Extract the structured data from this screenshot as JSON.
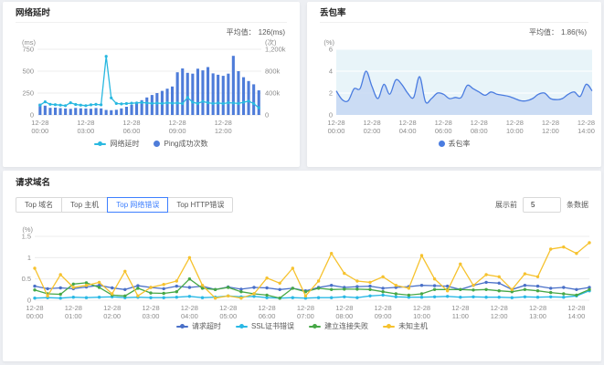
{
  "panels": {
    "latency": {
      "title": "网络延时",
      "avg_label": "平均值：",
      "avg_value": "126(ms)"
    },
    "loss": {
      "title": "丢包率",
      "avg_label": "平均值：",
      "avg_value": "1.86(%)"
    },
    "domains": {
      "title": "请求域名",
      "tabs": [
        "Top 域名",
        "Top 主机",
        "Top 网络错误",
        "Top HTTP错误"
      ],
      "active_tab": 2,
      "topn_prefix": "展示前",
      "topn_value": "5",
      "topn_suffix": "条数据"
    }
  },
  "colors": {
    "accent": "#3d7fff",
    "grid": "#ececec",
    "tick_text": "#8c8c8c"
  },
  "chart_data": [
    {
      "type": "bar+line",
      "title": "网络延时",
      "band": true,
      "x_count": 44,
      "x_date": "12-28",
      "x_ticks": [
        {
          "index": 0,
          "label": "00:00"
        },
        {
          "index": 9,
          "label": "03:00"
        },
        {
          "index": 18,
          "label": "06:00"
        },
        {
          "index": 27,
          "label": "09:00"
        },
        {
          "index": 36,
          "label": "12:00"
        }
      ],
      "y_left": {
        "max": 750,
        "ticks": [
          "0",
          "250",
          "500",
          "750"
        ],
        "unit": "(ms)"
      },
      "y_right": {
        "max": 1200,
        "ticks": [
          "0",
          "400k",
          "800k",
          "1,200k"
        ],
        "unit": "(次)"
      },
      "series": [
        {
          "name": "网络延时",
          "type": "line",
          "marker": "line",
          "color": "#29b8e0",
          "smooth": false,
          "dot_r": 1.6,
          "values": [
            112,
            150,
            122,
            118,
            113,
            106,
            140,
            120,
            112,
            106,
            116,
            121,
            116,
            670,
            195,
            131,
            126,
            130,
            134,
            138,
            142,
            137,
            132,
            135,
            131,
            139,
            134,
            136,
            130,
            200,
            146,
            131,
            154,
            140,
            131,
            136,
            130,
            140,
            136,
            131,
            145,
            158,
            130,
            82
          ]
        },
        {
          "name": "Ping成功次数",
          "type": "bar",
          "marker": "dot",
          "color": "#4e7cd9",
          "values": [
            205,
            170,
            130,
            135,
            125,
            118,
            112,
            128,
            122,
            118,
            114,
            126,
            120,
            92,
            86,
            95,
            120,
            150,
            185,
            225,
            270,
            320,
            365,
            400,
            440,
            480,
            520,
            780,
            850,
            770,
            755,
            845,
            815,
            875,
            760,
            735,
            715,
            755,
            1080,
            800,
            690,
            620,
            560,
            450
          ]
        }
      ]
    },
    {
      "type": "area",
      "title": "丢包率",
      "band": false,
      "plot_bg": "#e8f4f9",
      "grid_color": "#ffffff",
      "x_count": 44,
      "x_date": "12-28",
      "x_ticks": [
        {
          "index": 0,
          "label": "00:00"
        },
        {
          "index": 6,
          "label": "02:00"
        },
        {
          "index": 12,
          "label": "04:00"
        },
        {
          "index": 18,
          "label": "06:00"
        },
        {
          "index": 24,
          "label": "08:00"
        },
        {
          "index": 30,
          "label": "10:00"
        },
        {
          "index": 36,
          "label": "12:00"
        },
        {
          "index": 42,
          "label": "14:00"
        }
      ],
      "y": {
        "max": 6,
        "ticks": [
          "0",
          "2",
          "4",
          "6"
        ],
        "unit": "(%)"
      },
      "series": [
        {
          "name": "丢包率",
          "type": "area",
          "marker": "dot",
          "color": "#4a7ce0",
          "fill": "#c3d6f3",
          "smooth": true,
          "dots": false,
          "values": [
            2.2,
            1.4,
            1.3,
            2.4,
            2.4,
            4.0,
            2.6,
            1.5,
            2.8,
            1.9,
            3.2,
            2.8,
            2.0,
            1.6,
            3.5,
            1.2,
            1.5,
            2.0,
            1.9,
            1.5,
            1.6,
            1.6,
            2.7,
            2.4,
            2.1,
            1.8,
            2.1,
            1.9,
            1.8,
            1.7,
            1.5,
            1.3,
            1.3,
            1.5,
            1.9,
            2.0,
            1.5,
            1.4,
            1.5,
            1.9,
            2.1,
            1.7,
            2.8,
            2.2
          ]
        }
      ]
    },
    {
      "type": "line",
      "title": "请求域名 Top 网络错误",
      "band": false,
      "x_count": 44,
      "x_date": "12-28",
      "x_ticks": [
        {
          "index": 0,
          "label": "00:00"
        },
        {
          "index": 3,
          "label": "01:00"
        },
        {
          "index": 6,
          "label": "02:00"
        },
        {
          "index": 9,
          "label": "03:00"
        },
        {
          "index": 12,
          "label": "04:00"
        },
        {
          "index": 15,
          "label": "05:00"
        },
        {
          "index": 18,
          "label": "06:00"
        },
        {
          "index": 21,
          "label": "07:00"
        },
        {
          "index": 24,
          "label": "08:00"
        },
        {
          "index": 27,
          "label": "09:00"
        },
        {
          "index": 30,
          "label": "10:00"
        },
        {
          "index": 33,
          "label": "11:00"
        },
        {
          "index": 36,
          "label": "12:00"
        },
        {
          "index": 39,
          "label": "13:00"
        },
        {
          "index": 42,
          "label": "14:00"
        }
      ],
      "y": {
        "max": 1.5,
        "ticks": [
          "0",
          "0.5",
          "1",
          "1.5"
        ],
        "unit": "(%)"
      },
      "series": [
        {
          "name": "请求超时",
          "type": "line",
          "marker": "line",
          "color": "#4a70c8",
          "smooth": false,
          "dot_r": 1.7,
          "values": [
            0.33,
            0.27,
            0.29,
            0.27,
            0.31,
            0.35,
            0.29,
            0.25,
            0.34,
            0.3,
            0.27,
            0.33,
            0.3,
            0.33,
            0.25,
            0.31,
            0.26,
            0.3,
            0.29,
            0.25,
            0.28,
            0.22,
            0.3,
            0.35,
            0.3,
            0.32,
            0.33,
            0.28,
            0.3,
            0.32,
            0.35,
            0.34,
            0.33,
            0.25,
            0.35,
            0.42,
            0.4,
            0.25,
            0.35,
            0.33,
            0.28,
            0.3,
            0.25,
            0.3
          ]
        },
        {
          "name": "SSL证书错误",
          "type": "line",
          "marker": "line",
          "color": "#29b8e5",
          "smooth": false,
          "dot_r": 1.7,
          "values": [
            0.05,
            0.06,
            0.05,
            0.07,
            0.06,
            0.07,
            0.08,
            0.06,
            0.07,
            0.06,
            0.06,
            0.07,
            0.09,
            0.06,
            0.07,
            0.1,
            0.08,
            0.09,
            0.06,
            0.05,
            0.06,
            0.05,
            0.06,
            0.06,
            0.08,
            0.06,
            0.1,
            0.12,
            0.08,
            0.07,
            0.07,
            0.08,
            0.09,
            0.07,
            0.08,
            0.07,
            0.07,
            0.06,
            0.08,
            0.07,
            0.08,
            0.07,
            0.1,
            0.22
          ]
        },
        {
          "name": "建立连接失败",
          "type": "line",
          "marker": "line",
          "color": "#46a746",
          "smooth": false,
          "dot_r": 1.7,
          "values": [
            0.24,
            0.15,
            0.14,
            0.38,
            0.41,
            0.3,
            0.12,
            0.1,
            0.28,
            0.17,
            0.16,
            0.2,
            0.5,
            0.28,
            0.25,
            0.3,
            0.2,
            0.15,
            0.12,
            0.05,
            0.28,
            0.2,
            0.28,
            0.25,
            0.26,
            0.26,
            0.25,
            0.2,
            0.15,
            0.12,
            0.15,
            0.25,
            0.25,
            0.25,
            0.24,
            0.25,
            0.22,
            0.2,
            0.25,
            0.22,
            0.18,
            0.15,
            0.12,
            0.25
          ]
        },
        {
          "name": "未知主机",
          "type": "line",
          "marker": "line",
          "color": "#f6c22e",
          "smooth": false,
          "dot_r": 1.7,
          "values": [
            0.75,
            0.1,
            0.6,
            0.3,
            0.35,
            0.42,
            0.15,
            0.68,
            0.1,
            0.3,
            0.37,
            0.45,
            1.0,
            0.35,
            0.05,
            0.1,
            0.05,
            0.15,
            0.52,
            0.4,
            0.75,
            0.1,
            0.45,
            1.1,
            0.63,
            0.45,
            0.42,
            0.55,
            0.35,
            0.28,
            1.05,
            0.5,
            0.22,
            0.85,
            0.35,
            0.6,
            0.55,
            0.25,
            0.62,
            0.55,
            1.2,
            1.25,
            1.1,
            1.35
          ]
        }
      ]
    }
  ]
}
